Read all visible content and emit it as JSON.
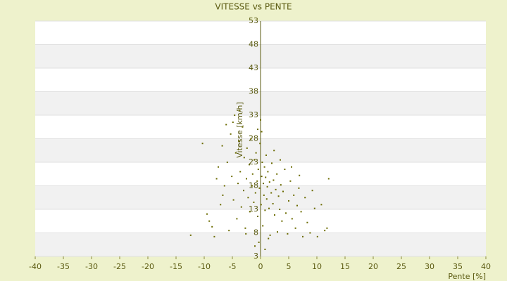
{
  "chart_data": {
    "type": "scatter",
    "title": "VITESSE vs PENTE",
    "x_label": "Pente [%]",
    "y_label": "Vitesse [km/h]",
    "color": "#6b6b00",
    "bands": true,
    "xlim": [
      -40,
      40
    ],
    "xticks": [
      -40,
      -35,
      -30,
      -25,
      -20,
      -15,
      -10,
      -5,
      0,
      5,
      10,
      15,
      20,
      25,
      30,
      35,
      40
    ],
    "ylim": [
      3,
      53
    ],
    "yticks": [
      3,
      8,
      13,
      18,
      23,
      28,
      33,
      38,
      43,
      48,
      53
    ],
    "x": [
      -12.4,
      -10.3,
      -9.5,
      -9.1,
      -8.6,
      -8.2,
      -7.5,
      -7.1,
      -6.8,
      -6.4,
      -6.1,
      -5.9,
      -5.6,
      -5.3,
      -5.1,
      -4.8,
      -4.6,
      -4.4,
      -4.2,
      -4.0,
      -3.8,
      -3.6,
      -3.4,
      -3.2,
      -3.0,
      -2.9,
      -2.7,
      -2.5,
      -2.4,
      -2.2,
      -2.0,
      -1.9,
      -1.7,
      -1.5,
      -1.4,
      -1.2,
      -1.1,
      -0.9,
      -0.8,
      -0.6,
      -0.5,
      -0.4,
      -0.2,
      -0.1,
      0.1,
      0.2,
      0.3,
      0.4,
      0.5,
      0.6,
      0.7,
      0.8,
      0.9,
      1.0,
      1.1,
      1.2,
      1.3,
      1.5,
      1.6,
      1.7,
      1.9,
      2.0,
      2.2,
      2.3,
      2.5,
      2.7,
      2.9,
      3.0,
      3.2,
      3.4,
      3.6,
      3.8,
      4.0,
      4.3,
      4.5,
      4.8,
      5.0,
      5.3,
      5.6,
      5.9,
      6.2,
      6.5,
      6.9,
      7.2,
      7.5,
      7.9,
      8.3,
      8.8,
      9.2,
      9.6,
      10.1,
      10.8,
      11.4,
      12.1,
      11.8,
      -0.3,
      0.8,
      -1.0,
      1.4,
      -2.6,
      0.0,
      -0.5,
      0.2,
      -3.7,
      -4.9,
      2.4,
      3.5,
      5.5,
      6.8,
      -6.7,
      -7.8
    ],
    "y": [
      7.5,
      27,
      12,
      10.5,
      9.3,
      7.2,
      22,
      14,
      26.5,
      18,
      31,
      23,
      8.5,
      29,
      20,
      15,
      33,
      25,
      11,
      18.5,
      27.5,
      21,
      13.5,
      30.5,
      17,
      24,
      9,
      19.5,
      26,
      15.5,
      22.5,
      12.5,
      28,
      18,
      20.5,
      14.5,
      23.5,
      16.5,
      25,
      19,
      11.5,
      21.5,
      17.5,
      27,
      14,
      20,
      23,
      9.5,
      18.5,
      16,
      22,
      12.8,
      19.8,
      24.5,
      15.2,
      17.8,
      21,
      13.2,
      18.8,
      7.5,
      16.5,
      22.8,
      14.2,
      19.2,
      11.8,
      17.2,
      20.5,
      8.2,
      15.8,
      13,
      18.2,
      10.5,
      16.8,
      21.5,
      12.2,
      7.8,
      14.8,
      19,
      11,
      16,
      9,
      13.8,
      20.2,
      12.5,
      7.2,
      15.5,
      10.2,
      8,
      17,
      13.2,
      7.2,
      14,
      8.5,
      19.5,
      9,
      6,
      4.5,
      5.2,
      6.8,
      7.8,
      32,
      30,
      29.5,
      34,
      31.5,
      25.5,
      23.5,
      22,
      17.5,
      16,
      19.5
    ]
  }
}
